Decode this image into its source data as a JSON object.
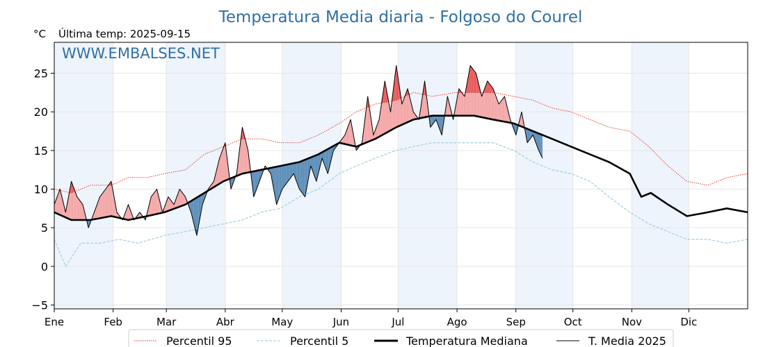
{
  "chart_data": {
    "type": "line",
    "title": "Temperatura Media diaria - Folgoso do Courel",
    "unit_label": "°C",
    "last_temp_label": "Última temp: 2025-09-15",
    "watermark": "WWW.EMBALSES.NET",
    "ylim": [
      -5.5,
      29
    ],
    "yticks": [
      -5,
      0,
      5,
      10,
      15,
      20,
      25
    ],
    "xlim": [
      1,
      366
    ],
    "month_labels": [
      "Ene",
      "Feb",
      "Mar",
      "Abr",
      "May",
      "Jun",
      "Jul",
      "Ago",
      "Sep",
      "Oct",
      "Nov",
      "Dic"
    ],
    "month_starts": [
      1,
      32,
      60,
      91,
      121,
      152,
      182,
      213,
      244,
      274,
      305,
      335
    ],
    "grid": true,
    "legend_position": "bottom-center",
    "colors": {
      "p95": "#e8291c",
      "p5": "#a5d2e0",
      "median": "#000000",
      "current": "#000000",
      "above": "#f4a6a6",
      "above_strong": "#e85a5a",
      "below": "#5b8db8",
      "below_strong": "#1f5a8a",
      "title": "#2e6fa6",
      "band": "#eef4fb"
    },
    "series": [
      {
        "name": "Percentil 95",
        "style": "dotted",
        "x": [
          1,
          10,
          20,
          31,
          40,
          50,
          59,
          70,
          80,
          90,
          100,
          110,
          120,
          130,
          140,
          151,
          160,
          170,
          181,
          190,
          200,
          212,
          222,
          232,
          243,
          253,
          263,
          273,
          283,
          293,
          304,
          314,
          324,
          334,
          345,
          355,
          366
        ],
        "values": [
          10,
          9.5,
          10.5,
          10.5,
          11.5,
          11.5,
          12,
          12.5,
          14.5,
          15.5,
          16.5,
          16.5,
          16,
          16,
          17,
          18.5,
          20,
          21,
          21.5,
          22.5,
          22,
          22.5,
          22.5,
          22.5,
          22,
          21.5,
          20.5,
          20,
          19,
          18,
          17.5,
          15.5,
          13,
          11,
          10.5,
          11.5,
          12
        ]
      },
      {
        "name": "Percentil 5",
        "style": "dashed",
        "x": [
          1,
          7,
          15,
          25,
          35,
          45,
          59,
          70,
          80,
          90,
          100,
          110,
          120,
          130,
          140,
          151,
          160,
          170,
          181,
          190,
          200,
          212,
          222,
          232,
          243,
          253,
          263,
          273,
          283,
          293,
          304,
          314,
          324,
          334,
          345,
          355,
          366
        ],
        "values": [
          3.5,
          0,
          3,
          3,
          3.5,
          3,
          4,
          4.5,
          5,
          5.5,
          6,
          7,
          7.5,
          9,
          10,
          12,
          13,
          14,
          15,
          15.5,
          16,
          16,
          16,
          16,
          15,
          13.5,
          12.5,
          12,
          11,
          9,
          7,
          5.5,
          4.5,
          3.5,
          3.5,
          3,
          3.5
        ]
      },
      {
        "name": "Temperatura Mediana",
        "style": "solid-thick",
        "x": [
          1,
          10,
          20,
          31,
          40,
          50,
          59,
          70,
          80,
          90,
          100,
          110,
          120,
          130,
          140,
          151,
          160,
          170,
          181,
          190,
          200,
          212,
          222,
          232,
          243,
          253,
          263,
          273,
          283,
          293,
          304,
          310,
          315,
          324,
          334,
          345,
          355,
          366
        ],
        "values": [
          7,
          6,
          6,
          6.5,
          6,
          6.5,
          7,
          8,
          9.5,
          11,
          12,
          12.5,
          13,
          13.5,
          14.5,
          16,
          15.5,
          16.5,
          18,
          19,
          19.5,
          19.5,
          19.5,
          19,
          18.5,
          17.5,
          16.5,
          15.5,
          14.5,
          13.5,
          12,
          9,
          9.5,
          8,
          6.5,
          7,
          7.5,
          7
        ]
      },
      {
        "name": "T. Media 2025",
        "style": "solid-thin",
        "x": [
          1,
          4,
          7,
          10,
          13,
          16,
          19,
          22,
          25,
          28,
          31,
          34,
          37,
          40,
          43,
          46,
          49,
          52,
          55,
          58,
          61,
          64,
          67,
          70,
          73,
          76,
          79,
          82,
          85,
          88,
          91,
          94,
          97,
          100,
          103,
          106,
          109,
          112,
          115,
          118,
          121,
          124,
          127,
          130,
          133,
          136,
          139,
          142,
          145,
          148,
          151,
          154,
          157,
          160,
          163,
          166,
          169,
          172,
          175,
          178,
          181,
          184,
          187,
          190,
          193,
          196,
          199,
          202,
          205,
          208,
          211,
          214,
          217,
          220,
          223,
          226,
          229,
          232,
          235,
          238,
          241,
          244,
          247,
          250,
          253,
          256,
          258
        ],
        "values": [
          8,
          10,
          7,
          11,
          9,
          8,
          5,
          7,
          9,
          10,
          11,
          7,
          6,
          8,
          6,
          7,
          6,
          9,
          10,
          7,
          9,
          8,
          10,
          9,
          7,
          4,
          8,
          10,
          11,
          14,
          16,
          10,
          12,
          18,
          15,
          9,
          11,
          13,
          12,
          8,
          10,
          11,
          12,
          10,
          9,
          13,
          11,
          14,
          12,
          15,
          16,
          17,
          19,
          15,
          16,
          22,
          17,
          19,
          24,
          20,
          26,
          21,
          23,
          20,
          19,
          24,
          18,
          19,
          17,
          22,
          19,
          23,
          22,
          26,
          25,
          22,
          24,
          23,
          21,
          22,
          19,
          17,
          20,
          16,
          17,
          15,
          14
        ]
      }
    ]
  }
}
